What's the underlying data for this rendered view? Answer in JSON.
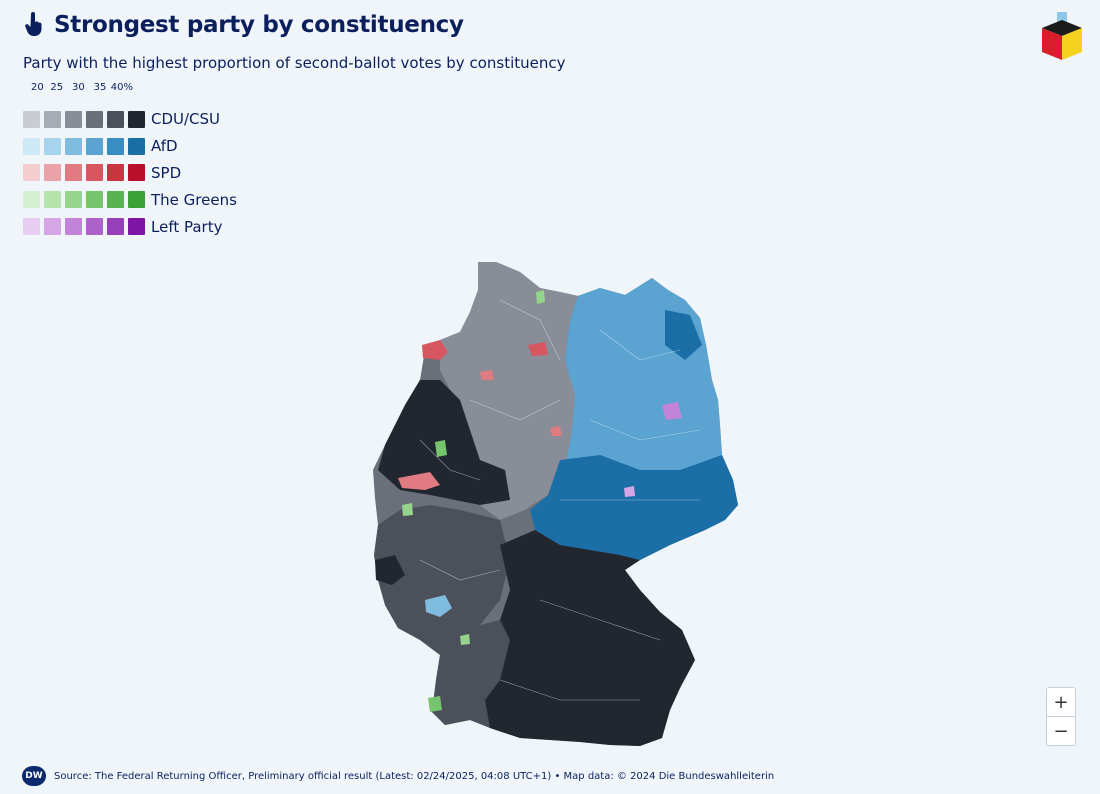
{
  "header": {
    "title": "Strongest party by constituency",
    "subtitle": "Party with the highest proportion of second-ballot votes by constituency",
    "icon": "hand-pointer-icon"
  },
  "legend": {
    "scale_ticks": [
      "20",
      "25",
      "30",
      "35",
      "40%"
    ],
    "parties": [
      {
        "label": "CDU/CSU",
        "colors": [
          "#c9ccd3",
          "#a7abb4",
          "#898d97",
          "#6b6f7a",
          "#4c505b",
          "#22262f"
        ]
      },
      {
        "label": "AfD",
        "colors": [
          "#cde8f7",
          "#a7d4ed",
          "#7fbce0",
          "#5ba4d2",
          "#3a8dc3",
          "#1b6fa6"
        ]
      },
      {
        "label": "SPD",
        "colors": [
          "#f4cdd1",
          "#eaa2a8",
          "#e07b82",
          "#d6575f",
          "#c8343f",
          "#b8102a"
        ]
      },
      {
        "label": "The Greens",
        "colors": [
          "#d3f0cf",
          "#b4e3ac",
          "#94d48b",
          "#76c46d",
          "#58b451",
          "#39a339"
        ]
      },
      {
        "label": "Left Party",
        "colors": [
          "#e8cdf2",
          "#d5a6e6",
          "#c283d9",
          "#ad61cb",
          "#973fbb",
          "#7f14a6"
        ]
      }
    ]
  },
  "map": {
    "dominant_regions": [
      {
        "region": "north",
        "party": "CDU/CSU"
      },
      {
        "region": "east",
        "party": "AfD"
      },
      {
        "region": "south",
        "party": "CDU/CSU"
      },
      {
        "region": "west",
        "party": "CDU/CSU"
      }
    ]
  },
  "zoom": {
    "in_label": "+",
    "out_label": "−"
  },
  "footer": {
    "logo": "DW",
    "source": "Source: The Federal Returning Officer, Preliminary official result (Latest: 02/24/2025, 04:08 UTC+1) • Map data: © 2024 Die Bundeswahlleiterin"
  },
  "colors": {
    "title": "#0b1f5c",
    "background": "#f0f5fa"
  }
}
